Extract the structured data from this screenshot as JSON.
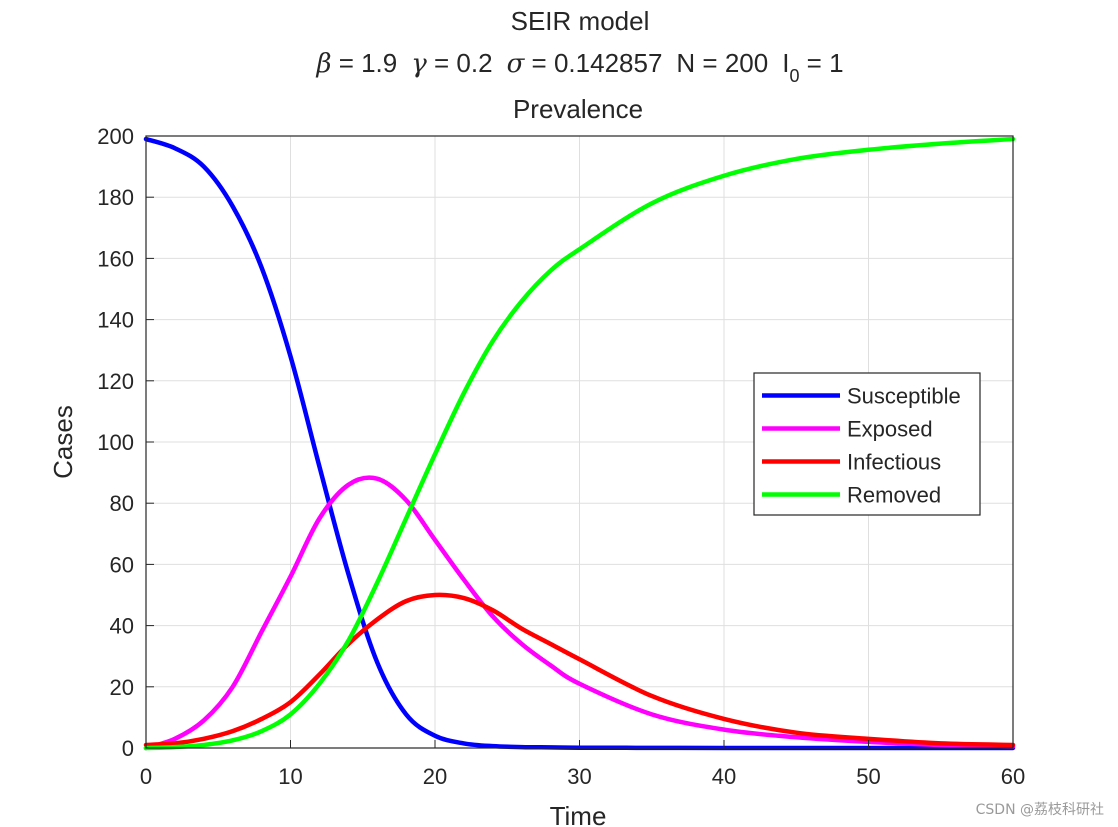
{
  "chart_data": {
    "type": "line",
    "title": "SEIR model",
    "params": {
      "beta_symbol": "β",
      "beta_text": " = 1.9",
      "gamma_symbol": "γ",
      "gamma_text": " = 0.2",
      "sigma_symbol": "σ",
      "sigma_text": " = 0.142857",
      "n_text": "N = 200",
      "i_text": "I",
      "i_sub": "0",
      "i_value": " = 1"
    },
    "subtitle": "Prevalence",
    "xlabel": "Time",
    "ylabel": "Cases",
    "xlim": [
      0,
      60
    ],
    "ylim": [
      0,
      200
    ],
    "xticks": [
      0,
      10,
      20,
      30,
      40,
      50,
      60
    ],
    "yticks": [
      0,
      20,
      40,
      60,
      80,
      100,
      120,
      140,
      160,
      180,
      200
    ],
    "grid": true,
    "legend_position": "right-center",
    "x": [
      0,
      2,
      4,
      6,
      8,
      10,
      12,
      14,
      16,
      18,
      20,
      22,
      24,
      26,
      28,
      30,
      35,
      40,
      45,
      50,
      55,
      60
    ],
    "series": [
      {
        "name": "Susceptible",
        "color": "#0000ff",
        "values": [
          199,
          196,
          190,
          177,
          157,
          128,
          92,
          57,
          28,
          11,
          4,
          1.5,
          0.6,
          0.3,
          0.2,
          0.1,
          0.05,
          0.02,
          0.02,
          0.02,
          0.02,
          0.02
        ]
      },
      {
        "name": "Exposed",
        "color": "#ff00ff",
        "values": [
          0,
          3,
          9,
          20,
          38,
          56,
          75,
          86,
          88,
          81,
          68,
          55,
          43,
          34,
          27,
          21,
          11,
          6,
          3.5,
          2,
          1,
          0.5
        ]
      },
      {
        "name": "Infectious",
        "color": "#ff0000",
        "values": [
          1,
          1.5,
          3,
          5.5,
          9.5,
          15,
          24,
          34,
          42,
          48,
          50,
          49,
          45,
          39,
          34,
          29,
          17,
          9.5,
          5,
          3,
          1.5,
          1
        ]
      },
      {
        "name": "Removed",
        "color": "#00ff00",
        "values": [
          0,
          0.3,
          1,
          2.5,
          5.5,
          11,
          21,
          35,
          54,
          75,
          96,
          116,
          133,
          146,
          156,
          163,
          178,
          187,
          192.5,
          195.5,
          197.5,
          199
        ]
      }
    ]
  },
  "watermark": "CSDN @荔枝科研社"
}
